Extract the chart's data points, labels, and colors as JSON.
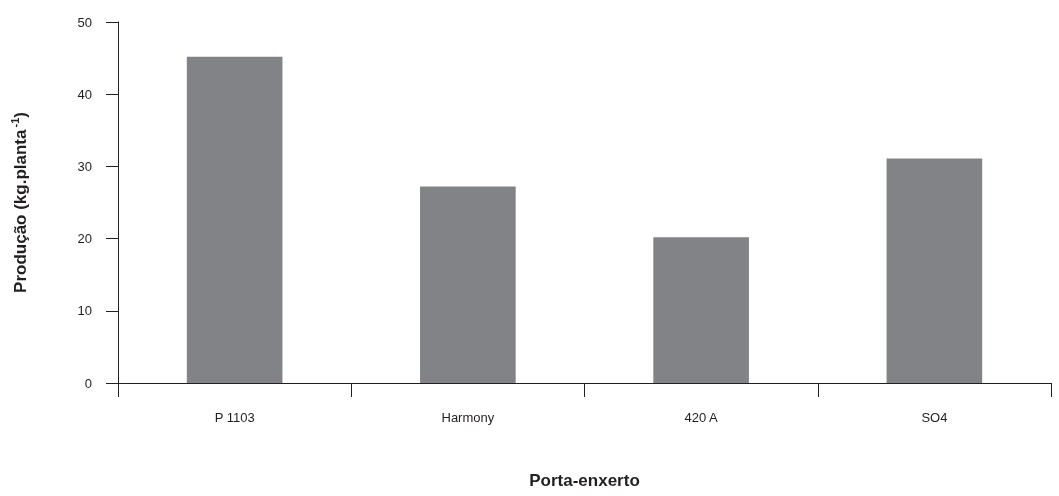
{
  "chart_data": {
    "type": "bar",
    "xlabel": "Porta-enxerto",
    "ylabel": "Produção (kg.planta$^{-1}$)",
    "categories": [
      "P 1103",
      "Harmony",
      "420 A",
      "SO4"
    ],
    "values": [
      45.2,
      27.2,
      20.2,
      31.1
    ],
    "color": "#828387",
    "ylim": [
      0,
      50
    ],
    "yticks": [
      0,
      10,
      20,
      30,
      40,
      50
    ],
    "grid": false
  }
}
